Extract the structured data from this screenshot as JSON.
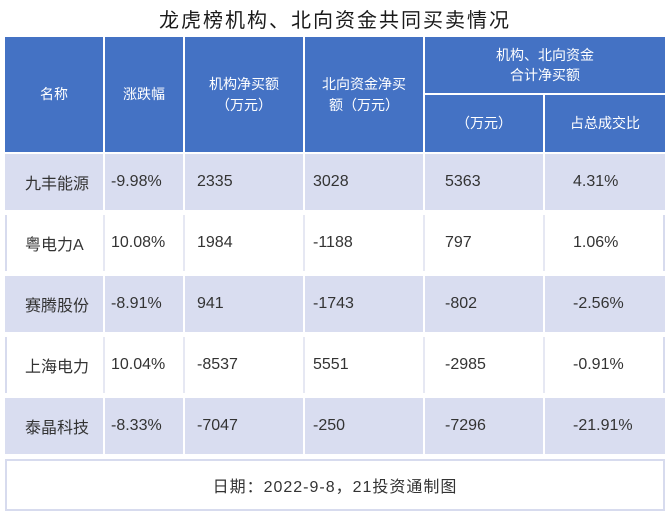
{
  "title": "龙虎榜机构、北向资金共同买卖情况",
  "table": {
    "columns": [
      {
        "label": "名称"
      },
      {
        "label": "涨跌幅"
      },
      {
        "label": "机构净买额\n（万元）"
      },
      {
        "label": "北向资金净买\n额（万元）"
      }
    ],
    "group_header": {
      "label": "机构、北向资金\n合计净买额",
      "sub_columns": [
        "（万元）",
        "占总成交比"
      ]
    },
    "rows": [
      {
        "name": "九丰能源",
        "change": "-9.98%",
        "inst_net_buy": "2335",
        "north_net_buy": "3028",
        "total_net_buy": "5363",
        "pct_of_turnover": "4.31%"
      },
      {
        "name": "粤电力A",
        "change": "10.08%",
        "inst_net_buy": "1984",
        "north_net_buy": "-1188",
        "total_net_buy": "797",
        "pct_of_turnover": "1.06%"
      },
      {
        "name": "赛腾股份",
        "change": "-8.91%",
        "inst_net_buy": "941",
        "north_net_buy": "-1743",
        "total_net_buy": "-802",
        "pct_of_turnover": "-2.56%"
      },
      {
        "name": "上海电力",
        "change": "10.04%",
        "inst_net_buy": "-8537",
        "north_net_buy": "5551",
        "total_net_buy": "-2985",
        "pct_of_turnover": "-0.91%"
      },
      {
        "name": "泰晶科技",
        "change": "-8.33%",
        "inst_net_buy": "-7047",
        "north_net_buy": "-250",
        "total_net_buy": "-7296",
        "pct_of_turnover": "-21.91%"
      }
    ]
  },
  "footer": {
    "text": "日期：2022-9-8，21投资通制图"
  },
  "colors": {
    "header_bg": "#4472C4",
    "header_text": "#FFFFFF",
    "row_alt_bg": "#D9DDF0",
    "row_bg": "#FFFFFF",
    "divider_light": "#E6E8F3",
    "outer_border": "#D7DBEE",
    "data_text": "#333333",
    "title_text": "#1A1A1A"
  },
  "chart_data": {
    "type": "table",
    "title": "龙虎榜机构、北向资金共同买卖情况",
    "columns": [
      "名称",
      "涨跌幅",
      "机构净买额（万元）",
      "北向资金净买额（万元）",
      "机构、北向资金合计净买额（万元）",
      "机构、北向资金合计净买额占总成交比"
    ],
    "rows": [
      [
        "九丰能源",
        "-9.98%",
        2335,
        3028,
        5363,
        "4.31%"
      ],
      [
        "粤电力A",
        "10.08%",
        1984,
        -1188,
        797,
        "1.06%"
      ],
      [
        "赛腾股份",
        "-8.91%",
        941,
        -1743,
        -802,
        "-2.56%"
      ],
      [
        "上海电力",
        "10.04%",
        -8537,
        5551,
        -2985,
        "-0.91%"
      ],
      [
        "泰晶科技",
        "-8.33%",
        -7047,
        -250,
        -7296,
        "-21.91%"
      ]
    ],
    "note": "日期：2022-9-8，21投资通制图",
    "layout": {
      "header_rows": 2,
      "zebra_striping": true,
      "grid": true
    }
  }
}
